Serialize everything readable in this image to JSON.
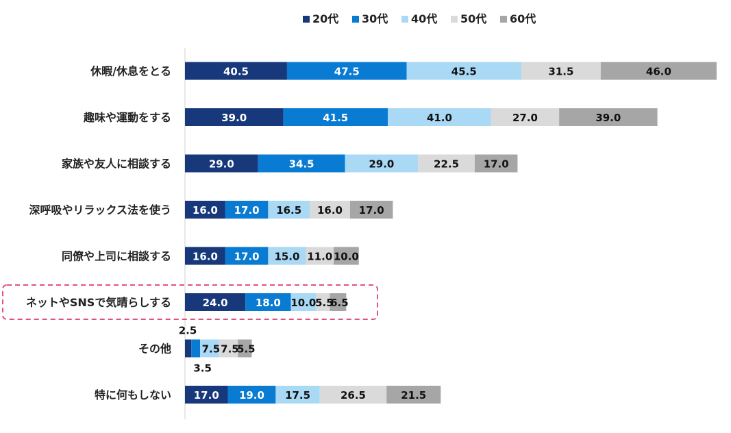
{
  "chart_data": {
    "type": "bar",
    "orientation": "horizontal",
    "stacked": true,
    "title": "",
    "categories": [
      "休暇/休息をとる",
      "趣味や運動をする",
      "家族や友人に相談する",
      "深呼吸やリラックス法を使う",
      "同僚や上司に相談する",
      "ネットやSNSで気晴らしする",
      "その他",
      "特に何もしない"
    ],
    "series": [
      {
        "name": "20代",
        "color": "#17387a",
        "text_color": "#ffffff",
        "values": [
          40.5,
          39.0,
          29.0,
          16.0,
          16.0,
          24.0,
          2.5,
          17.0
        ],
        "labels": [
          "40.5",
          "39.0",
          "29.0",
          "16.0",
          "16.0",
          "24.0",
          "2.5",
          "17.0"
        ]
      },
      {
        "name": "30代",
        "color": "#0a7bd2",
        "text_color": "#ffffff",
        "values": [
          47.5,
          41.5,
          34.5,
          17.0,
          17.0,
          18.0,
          3.5,
          19.0
        ],
        "labels": [
          "47.5",
          "41.5",
          "34.5",
          "17.0",
          "17.0",
          "18.0",
          "3.5",
          "19.0"
        ]
      },
      {
        "name": "40代",
        "color": "#a9d9f5",
        "text_color": "#111111",
        "values": [
          45.5,
          41.0,
          29.0,
          16.5,
          15.0,
          10.0,
          7.5,
          17.5
        ],
        "labels": [
          "45.5",
          "41.0",
          "29.0",
          "16.5",
          "15.0",
          "10.0",
          "7.5",
          "17.5"
        ]
      },
      {
        "name": "50代",
        "color": "#dadada",
        "text_color": "#111111",
        "values": [
          31.5,
          27.0,
          22.5,
          16.0,
          11.0,
          5.5,
          7.5,
          26.5
        ],
        "labels": [
          "31.5",
          "27.0",
          "22.5",
          "16.0",
          "11.0",
          "5.5",
          "7.5",
          "26.5"
        ]
      },
      {
        "name": "60代",
        "color": "#a6a6a6",
        "text_color": "#111111",
        "values": [
          46.0,
          39.0,
          17.0,
          17.0,
          10.0,
          6.5,
          5.5,
          21.5
        ],
        "labels": [
          "46.0",
          "39.0",
          "17.0",
          "17.0",
          "10.0",
          "6.5",
          "5.5",
          "21.5"
        ]
      }
    ],
    "xlim": [
      0,
      211
    ],
    "legend": "top-center",
    "grid": false,
    "highlight_category": "ネットやSNSで気晴らしする",
    "highlight_color": "#e0517e",
    "axis_color": "#d0d0d0"
  }
}
